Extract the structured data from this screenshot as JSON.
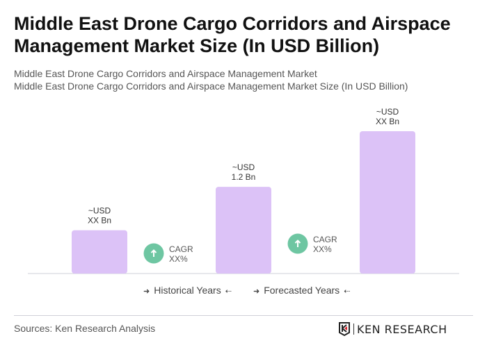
{
  "title": "Middle East Drone Cargo Corridors and Airspace Management Market Size (In USD Billion)",
  "subtitle1": "Middle East Drone Cargo Corridors and Airspace Management Market",
  "subtitle2": "Middle East Drone Cargo Corridors and Airspace Management Market Size (In USD Billion)",
  "chart_data": {
    "type": "bar",
    "categories": [
      "",
      "",
      ""
    ],
    "values": [
      0.6,
      1.2,
      1.97
    ],
    "data_labels": [
      [
        "~USD",
        "XX Bn"
      ],
      [
        "~USD",
        "1.2 Bn"
      ],
      [
        "~USD",
        "XX Bn"
      ]
    ],
    "bar_color": "#dcc2f7",
    "cagr": [
      {
        "label": "CAGR",
        "value": "XX%"
      },
      {
        "label": "CAGR",
        "value": "XX%"
      }
    ],
    "cagr_color": "#6ec6a2",
    "legend": [
      "Historical Years",
      "Forecasted Years"
    ],
    "grid": false
  },
  "sources": "Sources: Ken Research Analysis",
  "logo_text": "KEN RESEARCH"
}
